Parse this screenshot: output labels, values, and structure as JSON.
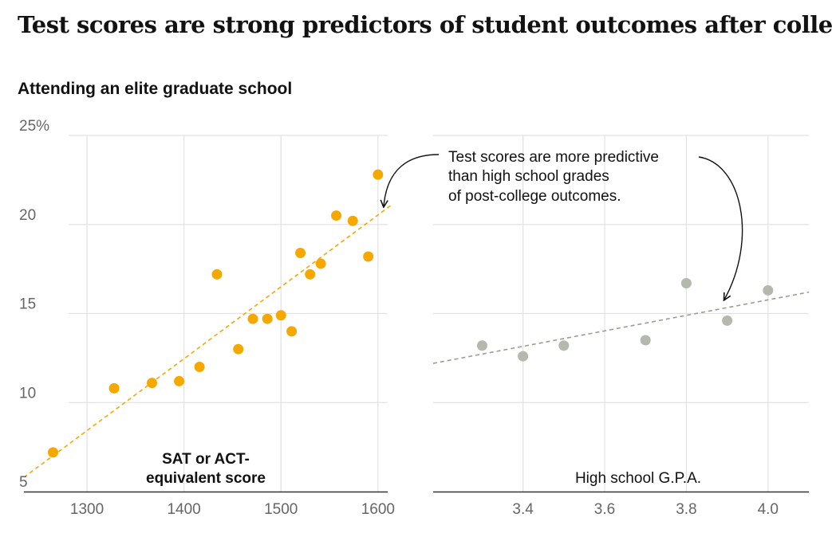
{
  "header": {
    "title": "Test scores are strong predictors of student outcomes after college",
    "subtitle": "Attending an elite graduate school"
  },
  "annotation": {
    "lines": [
      "Test scores are more predictive",
      "than high school grades",
      "of post-college outcomes."
    ]
  },
  "colors": {
    "sat": "#f5a800",
    "gpa": "#b5b8ad",
    "grid": "#e2e2e2",
    "axis": "#333333"
  },
  "chart_data": [
    {
      "type": "scatter",
      "id": "sat",
      "title": "Attending an elite graduate school",
      "xlabel": [
        "SAT or ACT-",
        "equivalent score"
      ],
      "ylabel": "",
      "xlim": [
        1235,
        1610
      ],
      "ylim": [
        5,
        25
      ],
      "xticks": [
        1300,
        1400,
        1500,
        1600
      ],
      "xtick_labels": [
        "1300",
        "1400",
        "1500",
        "1600"
      ],
      "yticks": [
        5,
        10,
        15,
        20,
        25
      ],
      "ytick_labels": [
        "5",
        "10",
        "15",
        "20",
        "25%"
      ],
      "points": [
        {
          "x": 1265,
          "y": 7.2
        },
        {
          "x": 1328,
          "y": 10.8
        },
        {
          "x": 1367,
          "y": 11.1
        },
        {
          "x": 1395,
          "y": 11.2
        },
        {
          "x": 1416,
          "y": 12.0
        },
        {
          "x": 1434,
          "y": 17.2
        },
        {
          "x": 1456,
          "y": 13.0
        },
        {
          "x": 1471,
          "y": 14.7
        },
        {
          "x": 1486,
          "y": 14.7
        },
        {
          "x": 1500,
          "y": 14.9
        },
        {
          "x": 1511,
          "y": 14.0
        },
        {
          "x": 1520,
          "y": 18.4
        },
        {
          "x": 1530,
          "y": 17.2
        },
        {
          "x": 1541,
          "y": 17.8
        },
        {
          "x": 1557,
          "y": 20.5
        },
        {
          "x": 1574,
          "y": 20.2
        },
        {
          "x": 1590,
          "y": 18.2
        },
        {
          "x": 1600,
          "y": 22.8
        }
      ],
      "trend": {
        "x": [
          1235,
          1614
        ],
        "y": [
          5.8,
          21.1
        ]
      }
    },
    {
      "type": "scatter",
      "id": "gpa",
      "xlabel": "High school G.P.A.",
      "ylabel": "",
      "xlim": [
        3.18,
        4.1
      ],
      "ylim": [
        5,
        25
      ],
      "xticks": [
        3.4,
        3.6,
        3.8,
        4.0
      ],
      "xtick_labels": [
        "3.4",
        "3.6",
        "3.8",
        "4.0"
      ],
      "points": [
        {
          "x": 3.3,
          "y": 13.2
        },
        {
          "x": 3.4,
          "y": 12.6
        },
        {
          "x": 3.5,
          "y": 13.2
        },
        {
          "x": 3.7,
          "y": 13.5
        },
        {
          "x": 3.8,
          "y": 16.7
        },
        {
          "x": 3.9,
          "y": 14.6
        },
        {
          "x": 4.0,
          "y": 16.3
        }
      ],
      "trend": {
        "x": [
          3.18,
          4.1
        ],
        "y": [
          12.2,
          16.2
        ]
      }
    }
  ]
}
